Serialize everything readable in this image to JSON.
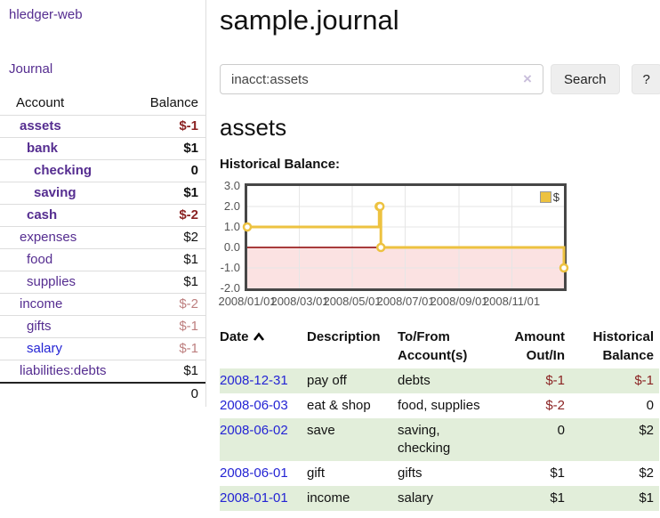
{
  "app": {
    "brand": "hledger-web"
  },
  "sidebar": {
    "journal_link": "Journal",
    "accounts_table": {
      "account_header": "Account",
      "balance_header": "Balance",
      "rows": [
        {
          "name": "assets",
          "balance": "$-1",
          "depth": 1,
          "bold": true,
          "balance_style": "neg-strong"
        },
        {
          "name": "bank",
          "balance": "$1",
          "depth": 2,
          "bold": true,
          "balance_style": ""
        },
        {
          "name": "checking",
          "balance": "0",
          "depth": 3,
          "bold": true,
          "balance_style": ""
        },
        {
          "name": "saving",
          "balance": "$1",
          "depth": 3,
          "bold": true,
          "balance_style": ""
        },
        {
          "name": "cash",
          "balance": "$-2",
          "depth": 2,
          "bold": true,
          "balance_style": "neg-strong"
        },
        {
          "name": "expenses",
          "balance": "$2",
          "depth": 1,
          "bold": false,
          "balance_style": ""
        },
        {
          "name": "food",
          "balance": "$1",
          "depth": 2,
          "bold": false,
          "balance_style": ""
        },
        {
          "name": "supplies",
          "balance": "$1",
          "depth": 2,
          "bold": false,
          "balance_style": ""
        },
        {
          "name": "income",
          "balance": "$-2",
          "depth": 1,
          "bold": false,
          "balance_style": "neg-faded"
        },
        {
          "name": "gifts",
          "balance": "$-1",
          "depth": 2,
          "bold": false,
          "balance_style": "neg-faded"
        },
        {
          "name": "salary",
          "balance": "$-1",
          "depth": 2,
          "bold": false,
          "balance_style": "neg-faded",
          "link_style": "unvisited"
        },
        {
          "name": "liabilities:debts",
          "balance": "$1",
          "depth": 1,
          "bold": false,
          "balance_style": ""
        }
      ],
      "total": "0"
    }
  },
  "main": {
    "title": "sample.journal",
    "search": {
      "value": "inacct:assets",
      "clear_icon": "×",
      "search_button": "Search",
      "help_button": "?"
    },
    "account_heading": "assets",
    "chart_label": "Historical Balance:"
  },
  "register": {
    "headers": {
      "date": "Date",
      "date_sort": "ascending",
      "description": "Description",
      "accounts": "To/From Account(s)",
      "amount": "Amount Out/In",
      "balance": "Historical Balance"
    },
    "rows": [
      {
        "date": "2008-12-31",
        "description": "pay off",
        "accounts": "debts",
        "amount": "$-1",
        "balance": "$-1",
        "amount_neg": true,
        "balance_neg": true
      },
      {
        "date": "2008-06-03",
        "description": "eat & shop",
        "accounts": "food, supplies",
        "amount": "$-2",
        "balance": "0",
        "amount_neg": true,
        "balance_neg": false
      },
      {
        "date": "2008-06-02",
        "description": "save",
        "accounts": "saving, checking",
        "amount": "0",
        "balance": "$2",
        "amount_neg": false,
        "balance_neg": false
      },
      {
        "date": "2008-06-01",
        "description": "gift",
        "accounts": "gifts",
        "amount": "$1",
        "balance": "$2",
        "amount_neg": false,
        "balance_neg": false
      },
      {
        "date": "2008-01-01",
        "description": "income",
        "accounts": "salary",
        "amount": "$1",
        "balance": "$1",
        "amount_neg": false,
        "balance_neg": false
      }
    ]
  },
  "chart_data": {
    "type": "line",
    "title": "Historical Balance:",
    "step": true,
    "legend_position": "top-right",
    "x_axis": {
      "max_day": 365,
      "ticks": [
        {
          "label": "2008/01/01",
          "day": 0
        },
        {
          "label": "2008/03/01",
          "day": 60
        },
        {
          "label": "2008/05/01",
          "day": 121
        },
        {
          "label": "2008/07/01",
          "day": 182
        },
        {
          "label": "2008/09/01",
          "day": 244
        },
        {
          "label": "2008/11/01",
          "day": 305
        }
      ]
    },
    "y_axis": {
      "min": -2.0,
      "max": 3.0,
      "ticks": [
        "3.0",
        "2.0",
        "1.0",
        "0.0",
        "-1.0",
        "-2.0"
      ]
    },
    "series": [
      {
        "name": "$",
        "color": "#edc240",
        "points": [
          {
            "date": "2008-01-01",
            "day": 0,
            "value": 1
          },
          {
            "date": "2008-06-01",
            "day": 152,
            "value": 2
          },
          {
            "date": "2008-06-02",
            "day": 153,
            "value": 2
          },
          {
            "date": "2008-06-03",
            "day": 154,
            "value": 0
          },
          {
            "date": "2008-12-31",
            "day": 365,
            "value": -1
          }
        ]
      }
    ],
    "negative_fill": "#fbe2e2",
    "zero_line_color": "#8b0000",
    "grid_color": "#e6e6e6",
    "border_color": "#474747"
  }
}
